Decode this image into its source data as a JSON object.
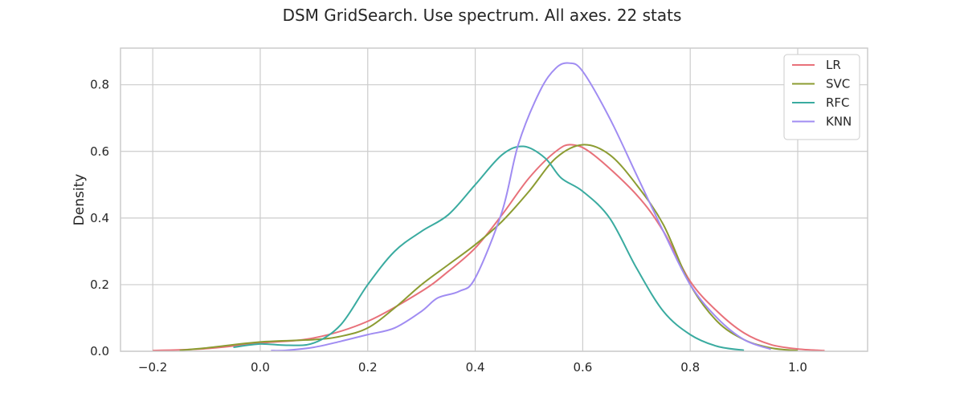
{
  "chart_data": {
    "type": "line",
    "title": "DSM GridSearch. Use spectrum. All axes. 22 stats",
    "xlabel": "",
    "ylabel": "Density",
    "xlim": [
      -0.26,
      1.13
    ],
    "ylim": [
      0,
      0.91
    ],
    "xticks": [
      -0.2,
      0.0,
      0.2,
      0.4,
      0.6,
      0.8,
      1.0
    ],
    "xtick_labels": [
      "−0.2",
      "0.0",
      "0.2",
      "0.4",
      "0.6",
      "0.8",
      "1.0"
    ],
    "yticks": [
      0.0,
      0.2,
      0.4,
      0.6,
      0.8
    ],
    "ytick_labels": [
      "0.0",
      "0.2",
      "0.4",
      "0.6",
      "0.8"
    ],
    "grid": true,
    "legend_position": "top-right",
    "series": [
      {
        "name": "LR",
        "color": "#e8717a",
        "points": [
          [
            -0.2,
            0.002
          ],
          [
            -0.1,
            0.008
          ],
          [
            0.0,
            0.025
          ],
          [
            0.1,
            0.04
          ],
          [
            0.2,
            0.09
          ],
          [
            0.3,
            0.18
          ],
          [
            0.35,
            0.24
          ],
          [
            0.4,
            0.31
          ],
          [
            0.45,
            0.41
          ],
          [
            0.5,
            0.52
          ],
          [
            0.55,
            0.6
          ],
          [
            0.58,
            0.62
          ],
          [
            0.62,
            0.59
          ],
          [
            0.7,
            0.47
          ],
          [
            0.75,
            0.36
          ],
          [
            0.8,
            0.21
          ],
          [
            0.85,
            0.12
          ],
          [
            0.9,
            0.055
          ],
          [
            0.95,
            0.02
          ],
          [
            1.0,
            0.007
          ],
          [
            1.05,
            0.002
          ]
        ]
      },
      {
        "name": "SVC",
        "color": "#8c9c32",
        "points": [
          [
            -0.15,
            0.003
          ],
          [
            -0.1,
            0.01
          ],
          [
            0.0,
            0.028
          ],
          [
            0.1,
            0.035
          ],
          [
            0.15,
            0.045
          ],
          [
            0.2,
            0.07
          ],
          [
            0.25,
            0.13
          ],
          [
            0.3,
            0.2
          ],
          [
            0.35,
            0.26
          ],
          [
            0.4,
            0.32
          ],
          [
            0.45,
            0.39
          ],
          [
            0.5,
            0.48
          ],
          [
            0.55,
            0.58
          ],
          [
            0.6,
            0.62
          ],
          [
            0.65,
            0.59
          ],
          [
            0.7,
            0.5
          ],
          [
            0.75,
            0.38
          ],
          [
            0.8,
            0.2
          ],
          [
            0.85,
            0.09
          ],
          [
            0.9,
            0.035
          ],
          [
            0.95,
            0.01
          ],
          [
            1.0,
            0.002
          ]
        ]
      },
      {
        "name": "RFC",
        "color": "#3aaba0",
        "points": [
          [
            -0.05,
            0.012
          ],
          [
            0.0,
            0.022
          ],
          [
            0.05,
            0.018
          ],
          [
            0.1,
            0.025
          ],
          [
            0.15,
            0.08
          ],
          [
            0.2,
            0.2
          ],
          [
            0.25,
            0.3
          ],
          [
            0.3,
            0.36
          ],
          [
            0.35,
            0.41
          ],
          [
            0.4,
            0.5
          ],
          [
            0.45,
            0.59
          ],
          [
            0.49,
            0.615
          ],
          [
            0.53,
            0.58
          ],
          [
            0.56,
            0.52
          ],
          [
            0.6,
            0.48
          ],
          [
            0.65,
            0.4
          ],
          [
            0.7,
            0.25
          ],
          [
            0.75,
            0.12
          ],
          [
            0.8,
            0.05
          ],
          [
            0.85,
            0.015
          ],
          [
            0.9,
            0.003
          ]
        ]
      },
      {
        "name": "KNN",
        "color": "#a08cf2",
        "points": [
          [
            0.02,
            0.002
          ],
          [
            0.05,
            0.003
          ],
          [
            0.1,
            0.012
          ],
          [
            0.15,
            0.03
          ],
          [
            0.2,
            0.05
          ],
          [
            0.25,
            0.07
          ],
          [
            0.3,
            0.12
          ],
          [
            0.33,
            0.16
          ],
          [
            0.37,
            0.18
          ],
          [
            0.4,
            0.22
          ],
          [
            0.45,
            0.42
          ],
          [
            0.48,
            0.62
          ],
          [
            0.52,
            0.78
          ],
          [
            0.55,
            0.85
          ],
          [
            0.575,
            0.865
          ],
          [
            0.6,
            0.84
          ],
          [
            0.65,
            0.7
          ],
          [
            0.7,
            0.53
          ],
          [
            0.75,
            0.36
          ],
          [
            0.8,
            0.2
          ],
          [
            0.85,
            0.1
          ],
          [
            0.9,
            0.035
          ],
          [
            0.95,
            0.006
          ]
        ]
      }
    ]
  }
}
